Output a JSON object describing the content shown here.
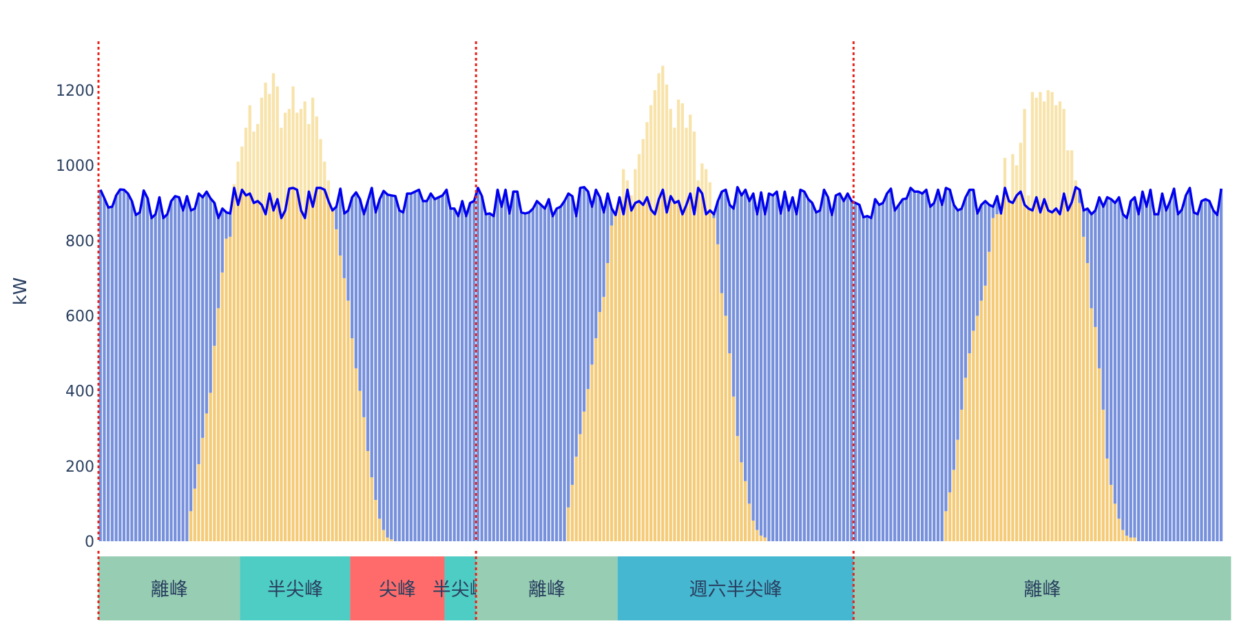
{
  "chart_data": {
    "type": "bar",
    "stacked": true,
    "title": "",
    "xlabel": "",
    "ylabel": "kW",
    "ylim": [
      0,
      1330
    ],
    "yticks": [
      0,
      200,
      400,
      600,
      800,
      1000,
      1200
    ],
    "grid": false,
    "intervals_per_day": 96,
    "day_boundaries": [
      0,
      96,
      192
    ],
    "colors": {
      "grid_bar": "#7690db",
      "solar_bar": "#f4cb78",
      "solar_excess_bar": "#f8e3aa",
      "load_line": "#0000ee",
      "day_boundary": "#e8201a"
    },
    "load": [
      935,
      912,
      888,
      890,
      920,
      936,
      935,
      925,
      905,
      868,
      875,
      933,
      912,
      860,
      870,
      915,
      860,
      870,
      905,
      918,
      915,
      880,
      918,
      880,
      885,
      925,
      915,
      930,
      912,
      900,
      860,
      885,
      875,
      872,
      940,
      895,
      935,
      920,
      925,
      900,
      905,
      895,
      870,
      925,
      880,
      910,
      860,
      880,
      938,
      940,
      935,
      880,
      860,
      930,
      890,
      940,
      940,
      935,
      905,
      880,
      890,
      938,
      872,
      880,
      915,
      928,
      910,
      870,
      905,
      940,
      875,
      910,
      932,
      922,
      920,
      918,
      880,
      875,
      925,
      925,
      930,
      935,
      905,
      905,
      925,
      910,
      915,
      920,
      935,
      885,
      885,
      865,
      905,
      865,
      900,
      905,
      940,
      918,
      870,
      872,
      865,
      935,
      890,
      935,
      872,
      930,
      930,
      875,
      872,
      875,
      885,
      905,
      895,
      885,
      910,
      865,
      885,
      890,
      905,
      925,
      918,
      865,
      940,
      942,
      930,
      890,
      935,
      915,
      875,
      925,
      885,
      868,
      915,
      870,
      935,
      880,
      900,
      905,
      895,
      915,
      882,
      870,
      910,
      935,
      875,
      918,
      900,
      905,
      870,
      895,
      925,
      870,
      940,
      925,
      870,
      880,
      870,
      905,
      930,
      935,
      895,
      885,
      942,
      920,
      935,
      905,
      925,
      870,
      928,
      870,
      925,
      920,
      930,
      872,
      930,
      880,
      915,
      870,
      935,
      930,
      910,
      900,
      875,
      880,
      935,
      915,
      868,
      920,
      925,
      905,
      925,
      905,
      900,
      895,
      862,
      865,
      860,
      910,
      895,
      900,
      925,
      938,
      880,
      895,
      910,
      912,
      940,
      930,
      930,
      925,
      935,
      890,
      900,
      935,
      895,
      940,
      935,
      895,
      880,
      885,
      915,
      935,
      935,
      872,
      895,
      905,
      895,
      890,
      918,
      872,
      940,
      905,
      900,
      920,
      930,
      895,
      885,
      880,
      915,
      875,
      910,
      880,
      875,
      885,
      870,
      925,
      880,
      902,
      942,
      935,
      880,
      885,
      870,
      880,
      915,
      890,
      915,
      910,
      900,
      915,
      870,
      860,
      905,
      915,
      870,
      930,
      890,
      935,
      870,
      870,
      925,
      880,
      905,
      938,
      870,
      882,
      920,
      940,
      875,
      870,
      905,
      910,
      905,
      880,
      868,
      938
    ],
    "solar": [
      0,
      0,
      0,
      0,
      0,
      0,
      0,
      0,
      0,
      0,
      0,
      0,
      0,
      0,
      0,
      0,
      0,
      0,
      0,
      0,
      0,
      0,
      0,
      80,
      140,
      205,
      275,
      340,
      395,
      520,
      620,
      715,
      805,
      810,
      950,
      1010,
      1050,
      1100,
      1160,
      1090,
      1110,
      1180,
      1220,
      1190,
      1245,
      1210,
      1100,
      1140,
      1150,
      1210,
      1140,
      1150,
      1170,
      1110,
      1180,
      1130,
      1070,
      1010,
      960,
      880,
      830,
      760,
      700,
      640,
      540,
      460,
      400,
      330,
      240,
      170,
      110,
      60,
      30,
      10,
      5,
      0,
      0,
      0,
      0,
      0,
      0,
      0,
      0,
      0,
      0,
      0,
      0,
      0,
      0,
      0,
      0,
      0,
      0,
      0,
      0,
      0,
      0,
      0,
      0,
      0,
      0,
      0,
      0,
      0,
      0,
      0,
      0,
      0,
      0,
      0,
      0,
      0,
      0,
      0,
      0,
      0,
      0,
      0,
      0,
      90,
      150,
      225,
      285,
      345,
      405,
      470,
      540,
      610,
      650,
      740,
      840,
      875,
      900,
      990,
      960,
      920,
      990,
      1030,
      1070,
      1115,
      1160,
      1200,
      1245,
      1265,
      1215,
      1150,
      1100,
      1175,
      1165,
      1100,
      1135,
      1090,
      960,
      1005,
      990,
      955,
      860,
      790,
      660,
      600,
      500,
      385,
      280,
      210,
      160,
      100,
      55,
      30,
      15,
      10,
      0,
      0,
      0,
      0,
      0,
      0,
      0,
      0,
      0,
      0,
      0,
      0,
      0,
      0,
      0,
      0,
      0,
      0,
      0,
      0,
      0,
      0,
      0,
      0,
      0,
      0,
      0,
      0,
      0,
      0,
      0,
      0,
      0,
      0,
      0,
      0,
      0,
      0,
      0,
      0,
      0,
      0,
      0,
      0,
      0,
      80,
      130,
      190,
      270,
      350,
      435,
      500,
      560,
      600,
      640,
      680,
      770,
      860,
      870,
      900,
      1020,
      910,
      1030,
      1000,
      1060,
      1150,
      920,
      1195,
      1180,
      1195,
      1170,
      1200,
      1195,
      1160,
      1170,
      1150,
      1040,
      1040,
      960,
      900,
      810,
      740,
      620,
      570,
      460,
      350,
      220,
      150,
      100,
      60,
      30,
      15,
      10,
      10,
      0,
      0,
      0,
      0,
      0,
      0,
      0,
      0,
      0,
      0,
      0,
      0,
      0,
      0,
      0,
      0,
      0,
      0,
      0,
      0,
      0,
      0,
      0,
      0
    ],
    "tariff_periods": [
      {
        "label": "離峰",
        "start": 0,
        "end": 36,
        "color": "#96cdb3"
      },
      {
        "label": "半尖峰",
        "start": 36,
        "end": 64,
        "color": "#4ecdc4"
      },
      {
        "label": "尖峰",
        "start": 64,
        "end": 88,
        "color": "#ff6b6b"
      },
      {
        "label": "半尖峰",
        "start": 88,
        "end": 96,
        "color": "#4ecdc4"
      },
      {
        "label": "離峰",
        "start": 96,
        "end": 132,
        "color": "#96cdb3"
      },
      {
        "label": "週六半尖峰",
        "start": 132,
        "end": 192,
        "color": "#45b7d1"
      },
      {
        "label": "離峰",
        "start": 192,
        "end": 288,
        "color": "#96cdb3"
      }
    ]
  }
}
